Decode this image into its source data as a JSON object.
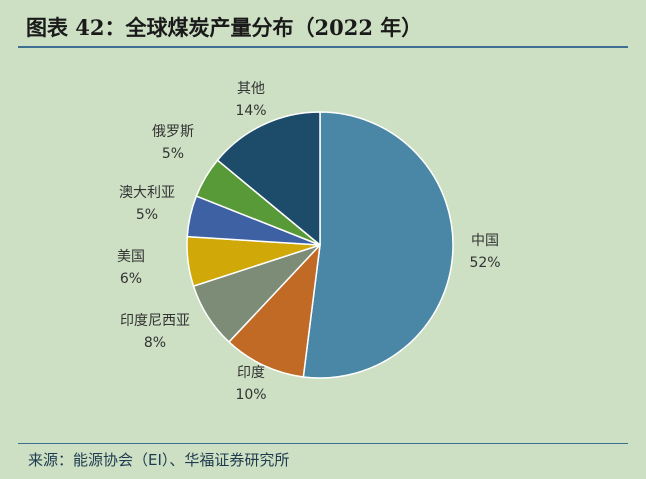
{
  "title": "图表 42：全球煤炭产量分布（2022 年）",
  "source": "来源：能源协会（EI）、华福证券研究所",
  "chart_data": {
    "type": "pie",
    "start_angle_deg": 0,
    "direction": "clockwise",
    "slices": [
      {
        "label": "中国",
        "value": 52,
        "value_text": "52%",
        "color": "#4a87a6"
      },
      {
        "label": "印度",
        "value": 10,
        "value_text": "10%",
        "color": "#c06a26"
      },
      {
        "label": "印度尼西亚",
        "value": 8,
        "value_text": "8%",
        "color": "#7c8c77"
      },
      {
        "label": "美国",
        "value": 6,
        "value_text": "6%",
        "color": "#d0a808"
      },
      {
        "label": "澳大利亚",
        "value": 5,
        "value_text": "5%",
        "color": "#3d61a3"
      },
      {
        "label": "俄罗斯",
        "value": 5,
        "value_text": "5%",
        "color": "#579a37"
      },
      {
        "label": "其他",
        "value": 14,
        "value_text": "14%",
        "color": "#1d4c6b"
      }
    ]
  }
}
